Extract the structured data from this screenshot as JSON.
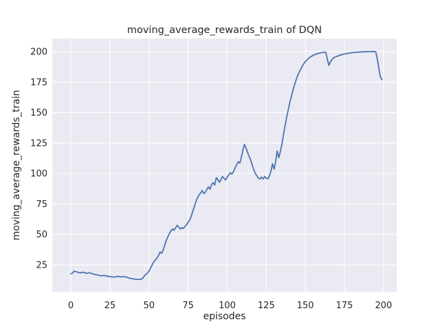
{
  "figure": {
    "background_color": "#ffffff"
  },
  "chart_data": {
    "type": "line",
    "title": "moving_average_rewards_train of DQN",
    "xlabel": "episodes",
    "ylabel": "moving_average_rewards_train",
    "x_ticks": [
      0,
      25,
      50,
      75,
      100,
      125,
      150,
      175,
      200
    ],
    "y_ticks": [
      25,
      50,
      75,
      100,
      125,
      150,
      175,
      200
    ],
    "xlim": [
      -11.9,
      208.4
    ],
    "ylim": [
      3.0,
      210.7
    ],
    "grid": true,
    "legend_position": "none",
    "plot_background_color": "#eaeaf2",
    "grid_color": "#ffffff",
    "text_color": "#262626",
    "series": [
      {
        "name": "moving_average_rewards_train",
        "color": "#4c72b0",
        "line_width": 1.8,
        "x_start": 0,
        "x_step": 1,
        "values": [
          17.8,
          18.1,
          19.9,
          19.5,
          19.2,
          18.7,
          18.4,
          18.8,
          19.0,
          18.4,
          18.1,
          18.4,
          18.6,
          18.0,
          17.6,
          17.3,
          17.0,
          16.7,
          16.5,
          16.2,
          16.0,
          16.4,
          16.1,
          15.8,
          15.6,
          15.4,
          15.2,
          15.1,
          15.0,
          15.2,
          15.7,
          15.4,
          15.1,
          15.3,
          15.5,
          15.2,
          14.7,
          14.3,
          14.0,
          13.7,
          13.5,
          13.3,
          13.2,
          13.1,
          13.1,
          13.3,
          14.2,
          16.0,
          17.3,
          18.2,
          20.0,
          22.5,
          25.0,
          27.5,
          29.0,
          30.5,
          32.5,
          35.5,
          34.5,
          37.0,
          41.0,
          45.0,
          48.0,
          50.5,
          53.0,
          54.5,
          53.5,
          55.5,
          57.5,
          56.0,
          54.5,
          55.5,
          55.0,
          56.5,
          58.0,
          60.0,
          62.0,
          65.0,
          69.0,
          73.0,
          77.0,
          80.0,
          82.5,
          84.0,
          86.0,
          83.5,
          84.5,
          87.0,
          89.0,
          87.0,
          91.0,
          92.5,
          90.5,
          96.5,
          95.0,
          92.8,
          95.0,
          97.5,
          96.0,
          94.6,
          97.0,
          99.0,
          100.5,
          99.5,
          101.5,
          104.5,
          107.0,
          109.5,
          108.5,
          113.0,
          119.0,
          123.8,
          121.0,
          117.5,
          114.0,
          111.0,
          107.0,
          103.0,
          100.0,
          98.0,
          96.0,
          95.5,
          97.0,
          95.5,
          97.5,
          96.0,
          95.5,
          98.0,
          102.0,
          108.0,
          103.5,
          110.0,
          118.5,
          113.0,
          118.0,
          124.0,
          132.0,
          139.0,
          146.0,
          152.0,
          158.0,
          163.0,
          168.0,
          172.5,
          176.5,
          180.0,
          183.0,
          185.5,
          188.0,
          190.0,
          191.8,
          193.2,
          194.4,
          195.4,
          196.2,
          196.9,
          197.5,
          198.0,
          198.4,
          198.7,
          199.0,
          199.2,
          199.4,
          199.4,
          194.0,
          188.7,
          191.5,
          193.5,
          194.8,
          195.5,
          196.0,
          196.5,
          197.0,
          197.3,
          197.7,
          198.0,
          198.2,
          198.5,
          198.7,
          198.9,
          199.1,
          199.2,
          199.4,
          199.5,
          199.6,
          199.7,
          199.7,
          199.8,
          199.8,
          199.9,
          199.9,
          199.9,
          200.0,
          200.0,
          200.0,
          199.8,
          194.0,
          186.0,
          179.0,
          177.0
        ]
      }
    ]
  }
}
